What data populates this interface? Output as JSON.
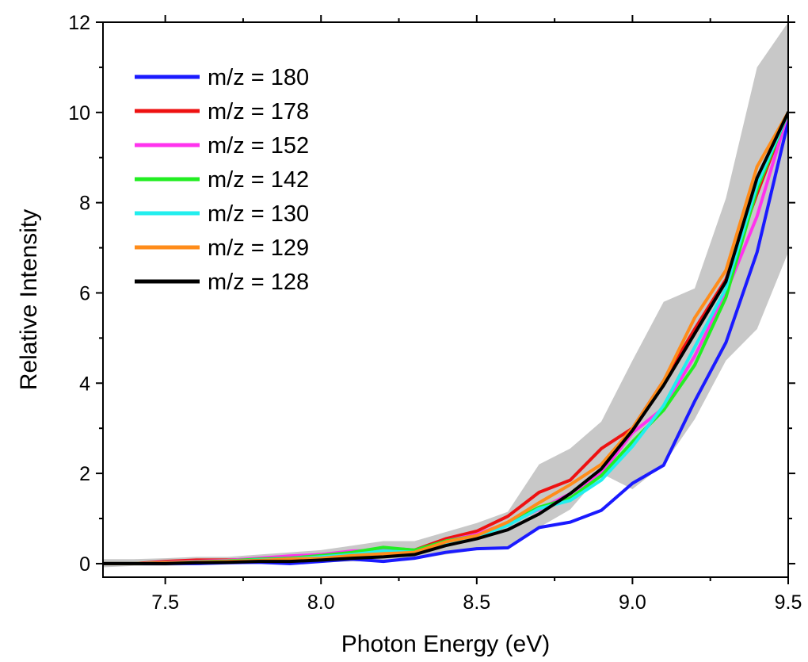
{
  "chart_data": {
    "type": "line",
    "xlabel": "Photon Energy (eV)",
    "ylabel": "Relative Intensity",
    "xlim": [
      7.3,
      9.5
    ],
    "ylim": [
      -0.3,
      12
    ],
    "xticks": [
      7.5,
      8.0,
      8.5,
      9.0,
      9.5
    ],
    "xtick_labels": [
      "7.5",
      "8.0",
      "8.5",
      "9.0",
      "9.5"
    ],
    "yticks": [
      0,
      2,
      4,
      6,
      8,
      10,
      12
    ],
    "ytick_labels": [
      "0",
      "2",
      "4",
      "6",
      "8",
      "10",
      "12"
    ],
    "grid": false,
    "legend_position": "top-left",
    "uncertainty_band": {
      "color": "#c8c8c8",
      "x": [
        7.3,
        7.4,
        7.5,
        7.6,
        7.7,
        7.8,
        7.9,
        8.0,
        8.1,
        8.2,
        8.3,
        8.4,
        8.5,
        8.6,
        8.7,
        8.8,
        8.9,
        9.0,
        9.1,
        9.2,
        9.3,
        9.4,
        9.5
      ],
      "upper": [
        0.1,
        0.1,
        0.12,
        0.15,
        0.15,
        0.2,
        0.25,
        0.3,
        0.4,
        0.5,
        0.5,
        0.7,
        0.9,
        1.15,
        2.2,
        2.55,
        3.15,
        4.5,
        5.8,
        6.1,
        8.1,
        11.0,
        12.0
      ],
      "lower": [
        -0.08,
        -0.05,
        -0.05,
        -0.03,
        -0.02,
        0.0,
        0.0,
        0.02,
        0.05,
        0.05,
        0.1,
        0.2,
        0.3,
        0.35,
        0.8,
        1.2,
        2.0,
        1.65,
        2.2,
        3.2,
        4.5,
        5.2,
        6.9
      ]
    },
    "x": [
      7.3,
      7.4,
      7.5,
      7.6,
      7.7,
      7.8,
      7.9,
      8.0,
      8.1,
      8.2,
      8.3,
      8.4,
      8.5,
      8.6,
      8.7,
      8.8,
      8.9,
      9.0,
      9.1,
      9.2,
      9.3,
      9.4,
      9.5
    ],
    "series": [
      {
        "name": "m/z = 180",
        "color": "#1a1aff",
        "values": [
          0.0,
          0.0,
          0.0,
          0.0,
          0.02,
          0.03,
          0.0,
          0.05,
          0.1,
          0.05,
          0.12,
          0.25,
          0.33,
          0.35,
          0.8,
          0.92,
          1.18,
          1.78,
          2.18,
          3.6,
          4.9,
          6.9,
          9.8
        ]
      },
      {
        "name": "m/z = 178",
        "color": "#ee1111",
        "values": [
          0.0,
          0.0,
          0.05,
          0.08,
          0.08,
          0.1,
          0.15,
          0.2,
          0.25,
          0.35,
          0.3,
          0.55,
          0.72,
          1.05,
          1.58,
          1.85,
          2.55,
          3.0,
          4.05,
          5.2,
          6.3,
          8.2,
          10.0
        ]
      },
      {
        "name": "m/z = 152",
        "color": "#ff33ee",
        "values": [
          0.0,
          0.0,
          0.03,
          0.05,
          0.07,
          0.12,
          0.17,
          0.2,
          0.28,
          0.3,
          0.28,
          0.5,
          0.65,
          0.9,
          1.2,
          1.55,
          2.0,
          2.9,
          3.45,
          4.6,
          6.0,
          7.7,
          10.0
        ]
      },
      {
        "name": "m/z = 142",
        "color": "#22ee22",
        "values": [
          0.0,
          0.0,
          0.02,
          0.04,
          0.06,
          0.1,
          0.12,
          0.18,
          0.25,
          0.36,
          0.3,
          0.5,
          0.62,
          0.88,
          1.25,
          1.45,
          1.95,
          2.7,
          3.4,
          4.4,
          5.9,
          8.3,
          10.0
        ]
      },
      {
        "name": "m/z = 130",
        "color": "#22eeee",
        "values": [
          0.0,
          0.0,
          0.02,
          0.03,
          0.05,
          0.08,
          0.1,
          0.15,
          0.2,
          0.28,
          0.25,
          0.45,
          0.6,
          0.85,
          1.22,
          1.4,
          1.85,
          2.6,
          3.5,
          4.8,
          6.1,
          8.4,
          10.0
        ]
      },
      {
        "name": "m/z = 129",
        "color": "#ff8c1a",
        "values": [
          0.0,
          0.0,
          0.02,
          0.03,
          0.05,
          0.07,
          0.1,
          0.12,
          0.18,
          0.22,
          0.25,
          0.48,
          0.62,
          0.92,
          1.35,
          1.75,
          2.2,
          3.0,
          4.05,
          5.45,
          6.5,
          8.8,
          10.0
        ]
      },
      {
        "name": "m/z = 128",
        "color": "#000000",
        "values": [
          0.0,
          0.0,
          0.0,
          0.02,
          0.03,
          0.05,
          0.05,
          0.08,
          0.12,
          0.15,
          0.2,
          0.4,
          0.55,
          0.75,
          1.1,
          1.55,
          2.1,
          2.95,
          3.95,
          5.1,
          6.25,
          8.55,
          10.0
        ]
      }
    ]
  }
}
